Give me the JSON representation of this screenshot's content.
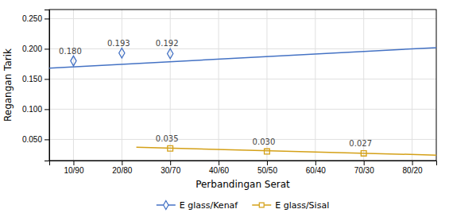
{
  "chart_data": {
    "type": "scatter",
    "xlabel": "Perbandingan Serat",
    "ylabel": "Regangan Tarik",
    "xlim": [
      0.5,
      8.5
    ],
    "ylim": [
      0.015,
      0.265
    ],
    "xticks": [
      {
        "value": 1,
        "label": "10/90"
      },
      {
        "value": 2,
        "label": "20/80"
      },
      {
        "value": 3,
        "label": "30/70"
      },
      {
        "value": 4,
        "label": "40/60"
      },
      {
        "value": 5,
        "label": "50/50"
      },
      {
        "value": 6,
        "label": "60/40"
      },
      {
        "value": 7,
        "label": "70/30"
      },
      {
        "value": 8,
        "label": "80/20"
      }
    ],
    "yticks": [
      {
        "value": 0.05,
        "label": "0.050"
      },
      {
        "value": 0.1,
        "label": "0.100"
      },
      {
        "value": 0.15,
        "label": "0.150"
      },
      {
        "value": 0.2,
        "label": "0.200"
      },
      {
        "value": 0.25,
        "label": "0.250"
      }
    ],
    "grid": true,
    "legend": "bottom",
    "data_labels": true,
    "series": [
      {
        "name": "E glass/Kenaf",
        "color": "#4472C4",
        "marker": "diamond",
        "x": [
          1,
          2,
          3
        ],
        "values": [
          0.18,
          0.193,
          0.192
        ],
        "value_labels": [
          "0.180",
          "0.193",
          "0.192"
        ],
        "trend_line": {
          "x": [
            0.5,
            8.5
          ],
          "values": [
            0.168,
            0.202
          ]
        }
      },
      {
        "name": "E glass/Sisal",
        "color": "#D4A017",
        "marker": "square",
        "x": [
          3,
          5,
          7
        ],
        "values": [
          0.035,
          0.03,
          0.027
        ],
        "value_labels": [
          "0.035",
          "0.030",
          "0.027"
        ],
        "trend_line": {
          "x": [
            2.3,
            8.5
          ],
          "values": [
            0.037,
            0.024
          ]
        }
      }
    ]
  }
}
